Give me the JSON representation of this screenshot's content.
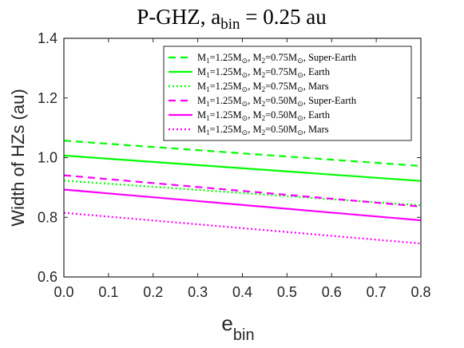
{
  "chart_data": {
    "type": "line",
    "title": {
      "main": "P-GHZ, a",
      "sub": "bin",
      "tail": " = 0.25 au"
    },
    "xlabel": {
      "main": "e",
      "sub": "bin"
    },
    "ylabel": "Width of HZs (au)",
    "xlim": [
      0,
      0.8
    ],
    "ylim": [
      0.6,
      1.4
    ],
    "xticks": [
      0,
      0.1,
      0.2,
      0.3,
      0.4,
      0.5,
      0.6,
      0.7,
      0.8
    ],
    "xtick_labels": [
      "0.0",
      "0.1",
      "0.2",
      "0.3",
      "0.4",
      "0.5",
      "0.6",
      "0.7",
      "0.8"
    ],
    "yticks": [
      0.6,
      0.8,
      1.0,
      1.2,
      1.4
    ],
    "ytick_labels": [
      "0.6",
      "0.8",
      "1.0",
      "1.2",
      "1.4"
    ],
    "grid": false,
    "legend_position": "top-right",
    "series": [
      {
        "name": "M1=1.25M⊙, M2=0.75M⊙, Super-Earth",
        "m1": "1.25",
        "m2": "0.75",
        "planet": "Super-Earth",
        "color": "#00ff00",
        "dash": "dashed",
        "x": [
          0.0,
          0.8
        ],
        "y": [
          1.057,
          0.972
        ]
      },
      {
        "name": "M1=1.25M⊙, M2=0.75M⊙, Earth",
        "m1": "1.25",
        "m2": "0.75",
        "planet": "Earth",
        "color": "#00ff00",
        "dash": "solid",
        "x": [
          0.0,
          0.8
        ],
        "y": [
          1.007,
          0.922
        ]
      },
      {
        "name": "M1=1.25M⊙, M2=0.75M⊙, Mars",
        "m1": "1.25",
        "m2": "0.75",
        "planet": "Mars",
        "color": "#00ff00",
        "dash": "dotted",
        "x": [
          0.0,
          0.8
        ],
        "y": [
          0.923,
          0.84
        ]
      },
      {
        "name": "M1=1.25M⊙, M2=0.50M⊙, Super-Earth",
        "m1": "1.25",
        "m2": "0.50",
        "planet": "Super-Earth",
        "color": "#ff00ff",
        "dash": "dashed",
        "x": [
          0.0,
          0.8
        ],
        "y": [
          0.941,
          0.836
        ]
      },
      {
        "name": "M1=1.25M⊙, M2=0.50M⊙, Earth",
        "m1": "1.25",
        "m2": "0.50",
        "planet": "Earth",
        "color": "#ff00ff",
        "dash": "solid",
        "x": [
          0.0,
          0.8
        ],
        "y": [
          0.893,
          0.79
        ]
      },
      {
        "name": "M1=1.25M⊙, M2=0.50M⊙, Mars",
        "m1": "1.25",
        "m2": "0.50",
        "planet": "Mars",
        "color": "#ff00ff",
        "dash": "dotted",
        "x": [
          0.0,
          0.8
        ],
        "y": [
          0.815,
          0.712
        ]
      }
    ]
  }
}
